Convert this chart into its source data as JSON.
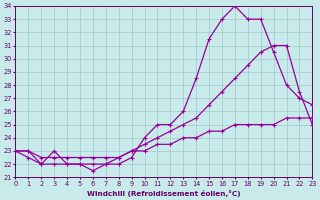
{
  "xlabel": "Windchill (Refroidissement éolien,°C)",
  "bg_color": "#c8eaea",
  "grid_color": "#a0c8c8",
  "line_color": "#990099",
  "x_min": 0,
  "x_max": 23,
  "y_min": 21,
  "y_max": 34,
  "series1_x": [
    0,
    1,
    2,
    3,
    4,
    5,
    6,
    7,
    8,
    9,
    10,
    11,
    12,
    13,
    14,
    15,
    16,
    17,
    18,
    19,
    20,
    21,
    22,
    23
  ],
  "series1_y": [
    23,
    23,
    22,
    23,
    22,
    22,
    21.5,
    22,
    22,
    22.5,
    24,
    25,
    25,
    26,
    28.5,
    31.5,
    33,
    34,
    33,
    33,
    30.5,
    28,
    27,
    26.5
  ],
  "series2_x": [
    0,
    1,
    2,
    3,
    4,
    5,
    6,
    7,
    8,
    9,
    10,
    11,
    12,
    13,
    14,
    15,
    16,
    17,
    18,
    19,
    20,
    21,
    22,
    23
  ],
  "series2_y": [
    23,
    22.5,
    22,
    22,
    22,
    22,
    22,
    22,
    22.5,
    23,
    23.5,
    24,
    24.5,
    25,
    25.5,
    26.5,
    27.5,
    28.5,
    29.5,
    30.5,
    31,
    31,
    27.5,
    25
  ],
  "series3_x": [
    0,
    1,
    2,
    3,
    4,
    5,
    6,
    7,
    8,
    9,
    10,
    11,
    12,
    13,
    14,
    15,
    16,
    17,
    18,
    19,
    20,
    21,
    22,
    23
  ],
  "series3_y": [
    23,
    23,
    22.5,
    22.5,
    22.5,
    22.5,
    22.5,
    22.5,
    22.5,
    23,
    23,
    23.5,
    23.5,
    24,
    24,
    24.5,
    24.5,
    25,
    25,
    25,
    25,
    25.5,
    25.5,
    25.5
  ],
  "xtick_labels": [
    "0",
    "1",
    "2",
    "3",
    "4",
    "5",
    "6",
    "7",
    "8",
    "9",
    "10",
    "11",
    "12",
    "13",
    "14",
    "15",
    "16",
    "17",
    "18",
    "19",
    "20",
    "21",
    "22",
    "23"
  ],
  "ytick_values": [
    21,
    22,
    23,
    24,
    25,
    26,
    27,
    28,
    29,
    30,
    31,
    32,
    33,
    34
  ],
  "font_color": "#660066"
}
